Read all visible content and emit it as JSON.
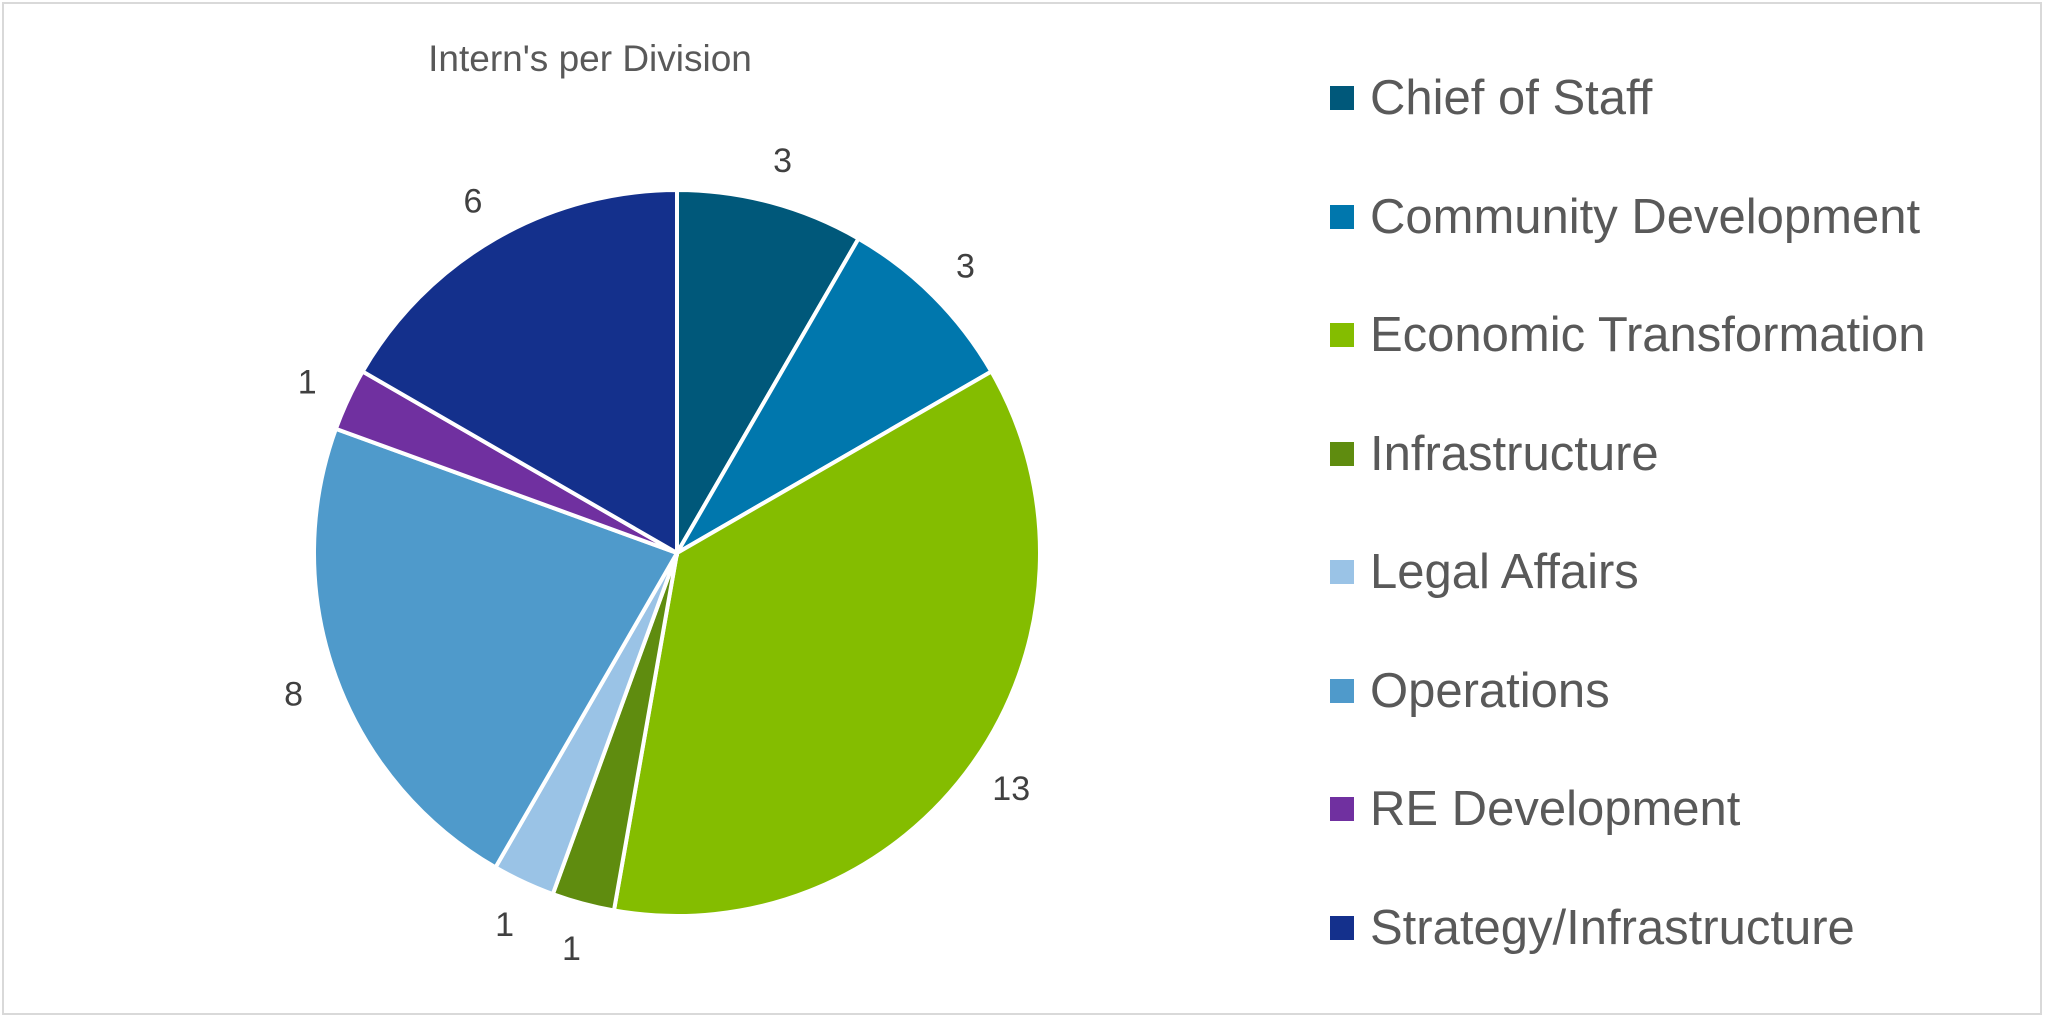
{
  "chart_data": {
    "type": "pie",
    "title": "Intern's per Division",
    "categories": [
      "Chief of Staff",
      "Community Development",
      "Economic Transformation",
      "Infrastructure",
      "Legal Affairs",
      "Operations",
      "RE Development",
      "Strategy/Infrastructure"
    ],
    "values": [
      3,
      3,
      13,
      1,
      1,
      8,
      1,
      6
    ],
    "labels": [
      "3",
      "3",
      "13",
      "1",
      "1",
      "8",
      "1",
      "6"
    ],
    "colors": [
      "#00587a",
      "#0077ad",
      "#84bd00",
      "#5f8c0f",
      "#9ac3e6",
      "#4f9acb",
      "#7030a0",
      "#14308c"
    ],
    "legend_position": "right"
  }
}
